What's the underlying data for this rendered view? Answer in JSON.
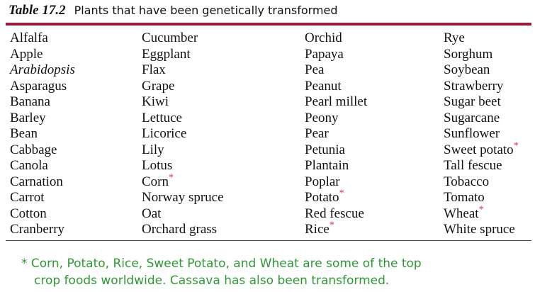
{
  "header": {
    "label": "Table 17.2",
    "title": "Plants that have been genetically transformed"
  },
  "table": {
    "rows": [
      [
        "Alfalfa",
        "Cucumber",
        "Orchid",
        "Rye"
      ],
      [
        "Apple",
        "Eggplant",
        "Papaya",
        "Sorghum"
      ],
      [
        {
          "text": "Arabidopsis",
          "italic": true
        },
        "Flax",
        "Pea",
        "Soybean"
      ],
      [
        "Asparagus",
        "Grape",
        "Peanut",
        "Strawberry"
      ],
      [
        "Banana",
        "Kiwi",
        "Pearl millet",
        "Sugar beet"
      ],
      [
        "Barley",
        "Lettuce",
        "Peony",
        "Sugarcane"
      ],
      [
        "Bean",
        "Licorice",
        "Pear",
        "Sunflower"
      ],
      [
        "Cabbage",
        "Lily",
        "Petunia",
        {
          "text": "Sweet potato",
          "note": "*"
        }
      ],
      [
        "Canola",
        "Lotus",
        "Plantain",
        "Tall fescue"
      ],
      [
        "Carnation",
        {
          "text": "Corn",
          "note": "*"
        },
        "Poplar",
        "Tobacco"
      ],
      [
        "Carrot",
        "Norway spruce",
        {
          "text": "Potato",
          "note": "*"
        },
        "Tomato"
      ],
      [
        "Cotton",
        "Oat",
        "Red fescue",
        {
          "text": "Wheat",
          "note": "*"
        }
      ],
      [
        "Cranberry",
        "Orchard grass",
        {
          "text": "Rice",
          "note": "*"
        },
        "White spruce"
      ]
    ]
  },
  "footnote": {
    "lines": [
      "* Corn, Potato, Rice, Sweet Potato, and Wheat are some of the top",
      "crop foods worldwide. Cassava has also been transformed."
    ]
  }
}
